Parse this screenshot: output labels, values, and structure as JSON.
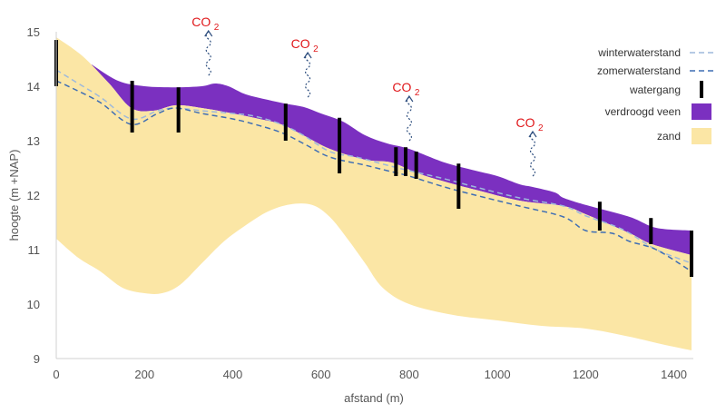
{
  "chart_data": {
    "type": "area",
    "xlabel": "afstand (m)",
    "ylabel": "hoogte (m +NAP)",
    "xlim": [
      0,
      1440
    ],
    "ylim": [
      9,
      15
    ],
    "x_ticks": [
      0,
      200,
      400,
      600,
      800,
      1000,
      1200,
      1400
    ],
    "y_ticks": [
      9,
      10,
      11,
      12,
      13,
      14,
      15
    ],
    "legend_position": "top-right",
    "colors": {
      "zand": "#fbe6a5",
      "verdroogd_veen": "#7b30c0",
      "winter_line": "#9db9dc",
      "zomer_line": "#3f6eb4",
      "watergang": "#000000",
      "co2": "#e0181b",
      "co2_arrow": "#2f4f7f",
      "axis": "#d0d0d0",
      "text": "#555555"
    },
    "legend": [
      {
        "key": "winter",
        "label": "winterwaterstand"
      },
      {
        "key": "zomer",
        "label": "zomerwaterstand"
      },
      {
        "key": "watergang",
        "label": "watergang"
      },
      {
        "key": "veen",
        "label": "verdroogd veen"
      },
      {
        "key": "zand",
        "label": "zand"
      }
    ],
    "zand_top": [
      [
        0,
        14.9
      ],
      [
        60,
        14.55
      ],
      [
        120,
        14.05
      ],
      [
        170,
        13.6
      ],
      [
        220,
        13.55
      ],
      [
        270,
        13.65
      ],
      [
        330,
        13.6
      ],
      [
        400,
        13.5
      ],
      [
        460,
        13.4
      ],
      [
        510,
        13.3
      ],
      [
        560,
        13.1
      ],
      [
        620,
        12.85
      ],
      [
        700,
        12.65
      ],
      [
        760,
        12.6
      ],
      [
        820,
        12.4
      ],
      [
        880,
        12.25
      ],
      [
        950,
        12.1
      ],
      [
        1050,
        11.9
      ],
      [
        1150,
        11.8
      ],
      [
        1200,
        11.65
      ],
      [
        1300,
        11.3
      ],
      [
        1350,
        11.1
      ],
      [
        1440,
        10.9
      ]
    ],
    "zand_bottom": [
      [
        0,
        11.2
      ],
      [
        50,
        10.85
      ],
      [
        100,
        10.6
      ],
      [
        150,
        10.3
      ],
      [
        200,
        10.2
      ],
      [
        240,
        10.2
      ],
      [
        280,
        10.35
      ],
      [
        330,
        10.75
      ],
      [
        380,
        11.15
      ],
      [
        430,
        11.45
      ],
      [
        480,
        11.7
      ],
      [
        530,
        11.83
      ],
      [
        580,
        11.82
      ],
      [
        620,
        11.6
      ],
      [
        660,
        11.2
      ],
      [
        700,
        10.75
      ],
      [
        740,
        10.3
      ],
      [
        800,
        10.0
      ],
      [
        900,
        9.8
      ],
      [
        1000,
        9.7
      ],
      [
        1100,
        9.6
      ],
      [
        1200,
        9.55
      ],
      [
        1300,
        9.4
      ],
      [
        1380,
        9.25
      ],
      [
        1440,
        9.15
      ]
    ],
    "veen_top": [
      [
        80,
        14.4
      ],
      [
        140,
        14.1
      ],
      [
        200,
        14.0
      ],
      [
        270,
        13.98
      ],
      [
        330,
        14.0
      ],
      [
        360,
        14.05
      ],
      [
        390,
        14.0
      ],
      [
        430,
        13.85
      ],
      [
        480,
        13.75
      ],
      [
        520,
        13.68
      ],
      [
        560,
        13.62
      ],
      [
        600,
        13.5
      ],
      [
        650,
        13.35
      ],
      [
        700,
        13.1
      ],
      [
        750,
        12.95
      ],
      [
        800,
        12.85
      ],
      [
        880,
        12.6
      ],
      [
        950,
        12.45
      ],
      [
        1000,
        12.35
      ],
      [
        1050,
        12.2
      ],
      [
        1080,
        12.15
      ],
      [
        1130,
        12.05
      ],
      [
        1150,
        11.95
      ],
      [
        1200,
        11.82
      ],
      [
        1300,
        11.6
      ],
      [
        1360,
        11.4
      ],
      [
        1440,
        11.35
      ]
    ],
    "winterwaterstand": [
      [
        0,
        14.3
      ],
      [
        40,
        14.1
      ],
      [
        100,
        13.8
      ],
      [
        170,
        13.4
      ],
      [
        230,
        13.55
      ],
      [
        270,
        13.6
      ],
      [
        330,
        13.55
      ],
      [
        400,
        13.5
      ],
      [
        450,
        13.45
      ],
      [
        510,
        13.3
      ],
      [
        560,
        13.1
      ],
      [
        620,
        12.8
      ],
      [
        680,
        12.7
      ],
      [
        750,
        12.55
      ],
      [
        800,
        12.45
      ],
      [
        880,
        12.3
      ],
      [
        950,
        12.15
      ],
      [
        1050,
        11.95
      ],
      [
        1150,
        11.8
      ],
      [
        1200,
        11.62
      ],
      [
        1260,
        11.45
      ],
      [
        1300,
        11.3
      ],
      [
        1360,
        11.0
      ],
      [
        1440,
        10.75
      ]
    ],
    "zomerwaterstand": [
      [
        0,
        14.1
      ],
      [
        40,
        13.95
      ],
      [
        100,
        13.7
      ],
      [
        170,
        13.3
      ],
      [
        230,
        13.5
      ],
      [
        270,
        13.6
      ],
      [
        330,
        13.5
      ],
      [
        400,
        13.4
      ],
      [
        450,
        13.3
      ],
      [
        510,
        13.15
      ],
      [
        560,
        12.95
      ],
      [
        620,
        12.7
      ],
      [
        700,
        12.55
      ],
      [
        750,
        12.45
      ],
      [
        800,
        12.35
      ],
      [
        880,
        12.15
      ],
      [
        950,
        12.0
      ],
      [
        1050,
        11.8
      ],
      [
        1150,
        11.6
      ],
      [
        1200,
        11.35
      ],
      [
        1260,
        11.3
      ],
      [
        1300,
        11.15
      ],
      [
        1360,
        11.0
      ],
      [
        1440,
        10.6
      ]
    ],
    "watergang": [
      {
        "x": 0,
        "ymin": 14.0,
        "ymax": 14.85
      },
      {
        "x": 172,
        "ymin": 13.15,
        "ymax": 14.1
      },
      {
        "x": 277,
        "ymin": 13.15,
        "ymax": 13.98
      },
      {
        "x": 520,
        "ymin": 13.0,
        "ymax": 13.68
      },
      {
        "x": 642,
        "ymin": 12.4,
        "ymax": 13.42
      },
      {
        "x": 770,
        "ymin": 12.35,
        "ymax": 12.88
      },
      {
        "x": 792,
        "ymin": 12.35,
        "ymax": 12.88
      },
      {
        "x": 816,
        "ymin": 12.3,
        "ymax": 12.8
      },
      {
        "x": 912,
        "ymin": 11.75,
        "ymax": 12.58
      },
      {
        "x": 1232,
        "ymin": 11.35,
        "ymax": 11.88
      },
      {
        "x": 1348,
        "ymin": 11.1,
        "ymax": 11.58
      },
      {
        "x": 1440,
        "ymin": 10.5,
        "ymax": 11.35
      }
    ],
    "co2_label": "CO",
    "co2_subscript": "2",
    "co2_markers": [
      {
        "x": 345,
        "y": 14.2
      },
      {
        "x": 570,
        "y": 13.8
      },
      {
        "x": 800,
        "y": 13.0
      },
      {
        "x": 1080,
        "y": 12.35
      }
    ]
  }
}
